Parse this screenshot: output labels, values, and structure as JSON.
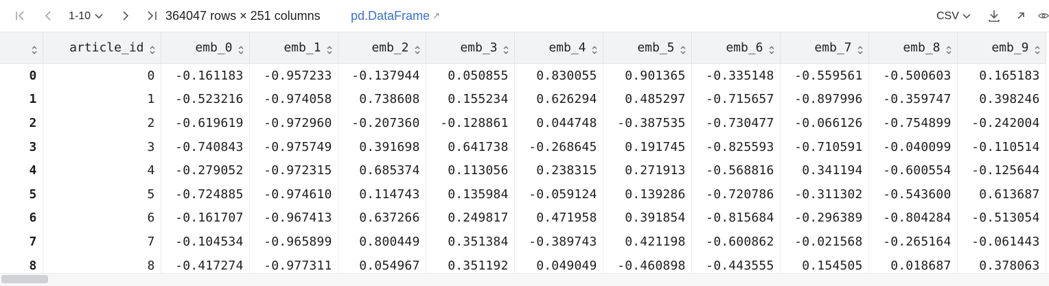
{
  "toolbar": {
    "page_range": "1-10",
    "info": "364047 rows × 251 columns",
    "df_type": "pd.DataFrame",
    "export_format": "CSV",
    "icons": [
      "first-page-icon",
      "prev-page-icon",
      "chevron-down-icon",
      "next-page-icon",
      "last-page-icon",
      "external-link-icon",
      "download-icon",
      "open-icon",
      "eye-icon"
    ]
  },
  "table": {
    "columns": [
      "",
      "article_id",
      "emb_0",
      "emb_1",
      "emb_2",
      "emb_3",
      "emb_4",
      "emb_5",
      "emb_6",
      "emb_7",
      "emb_8",
      "emb_9"
    ],
    "rows": [
      [
        "0",
        "0",
        "-0.161183",
        "-0.957233",
        "-0.137944",
        "0.050855",
        "0.830055",
        "0.901365",
        "-0.335148",
        "-0.559561",
        "-0.500603",
        "0.165183"
      ],
      [
        "1",
        "1",
        "-0.523216",
        "-0.974058",
        "0.738608",
        "0.155234",
        "0.626294",
        "0.485297",
        "-0.715657",
        "-0.897996",
        "-0.359747",
        "0.398246"
      ],
      [
        "2",
        "2",
        "-0.619619",
        "-0.972960",
        "-0.207360",
        "-0.128861",
        "0.044748",
        "-0.387535",
        "-0.730477",
        "-0.066126",
        "-0.754899",
        "-0.242004"
      ],
      [
        "3",
        "3",
        "-0.740843",
        "-0.975749",
        "0.391698",
        "0.641738",
        "-0.268645",
        "0.191745",
        "-0.825593",
        "-0.710591",
        "-0.040099",
        "-0.110514"
      ],
      [
        "4",
        "4",
        "-0.279052",
        "-0.972315",
        "0.685374",
        "0.113056",
        "0.238315",
        "0.271913",
        "-0.568816",
        "0.341194",
        "-0.600554",
        "-0.125644"
      ],
      [
        "5",
        "5",
        "-0.724885",
        "-0.974610",
        "0.114743",
        "0.135984",
        "-0.059124",
        "0.139286",
        "-0.720786",
        "-0.311302",
        "-0.543600",
        "0.613687"
      ],
      [
        "6",
        "6",
        "-0.161707",
        "-0.967413",
        "0.637266",
        "0.249817",
        "0.471958",
        "0.391854",
        "-0.815684",
        "-0.296389",
        "-0.804284",
        "-0.513054"
      ],
      [
        "7",
        "7",
        "-0.104534",
        "-0.965899",
        "0.800449",
        "0.351384",
        "-0.389743",
        "0.421198",
        "-0.600862",
        "-0.021568",
        "-0.265164",
        "-0.061443"
      ],
      [
        "8",
        "8",
        "-0.417274",
        "-0.977311",
        "0.054967",
        "0.351192",
        "0.049049",
        "-0.460898",
        "-0.443555",
        "0.154505",
        "0.018687",
        "0.378063"
      ]
    ]
  }
}
